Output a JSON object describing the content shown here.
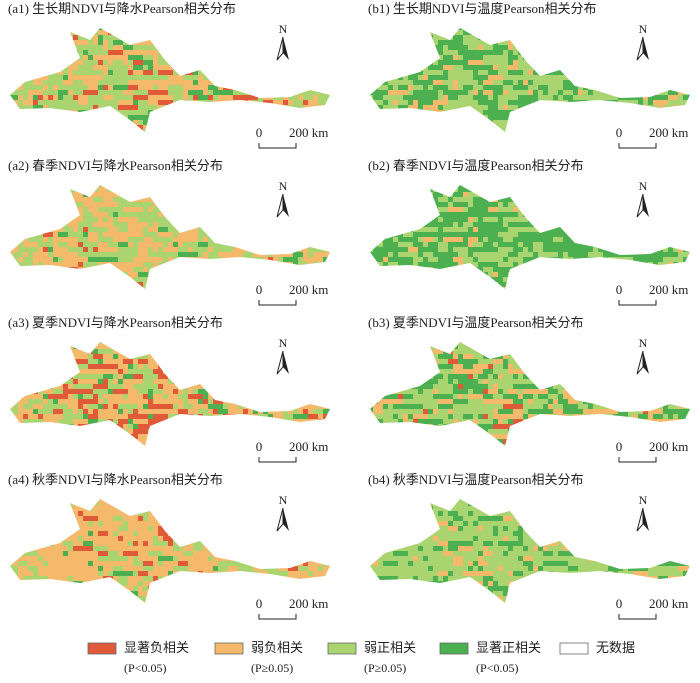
{
  "panels": [
    {
      "title": "(a1) 生长期NDVI与降水Pearson相关分布",
      "north": "N",
      "scale_zero": "0",
      "scale_label": "200 km"
    },
    {
      "title": "(b1) 生长期NDVI与温度Pearson相关分布",
      "north": "N",
      "scale_zero": "0",
      "scale_label": "200 km"
    },
    {
      "title": "(a2) 春季NDVI与降水Pearson相关分布",
      "north": "N",
      "scale_zero": "0",
      "scale_label": "200 km"
    },
    {
      "title": "(b2) 春季NDVI与温度Pearson相关分布",
      "north": "N",
      "scale_zero": "0",
      "scale_label": "200 km"
    },
    {
      "title": "(a3) 夏季NDVI与降水Pearson相关分布",
      "north": "N",
      "scale_zero": "0",
      "scale_label": "200 km"
    },
    {
      "title": "(b3) 夏季NDVI与温度Pearson相关分布",
      "north": "N",
      "scale_zero": "0",
      "scale_label": "200 km"
    },
    {
      "title": "(a4) 秋季NDVI与降水Pearson相关分布",
      "north": "N",
      "scale_zero": "0",
      "scale_label": "200 km"
    },
    {
      "title": "(b4) 秋季NDVI与温度Pearson相关分布",
      "north": "N",
      "scale_zero": "0",
      "scale_label": "200 km"
    }
  ],
  "legend": [
    {
      "label": "显著负相关",
      "note": "(P<0.05)",
      "color": "#e05a3a"
    },
    {
      "label": "弱负相关",
      "note": "(P≥0.05)",
      "color": "#f4b96b"
    },
    {
      "label": "弱正相关",
      "note": "(P≥0.05)",
      "color": "#a9d46f"
    },
    {
      "label": "显著正相关",
      "note": "(P<0.05)",
      "color": "#4caf50"
    },
    {
      "label": "无数据",
      "color": "#ffffff"
    }
  ]
}
